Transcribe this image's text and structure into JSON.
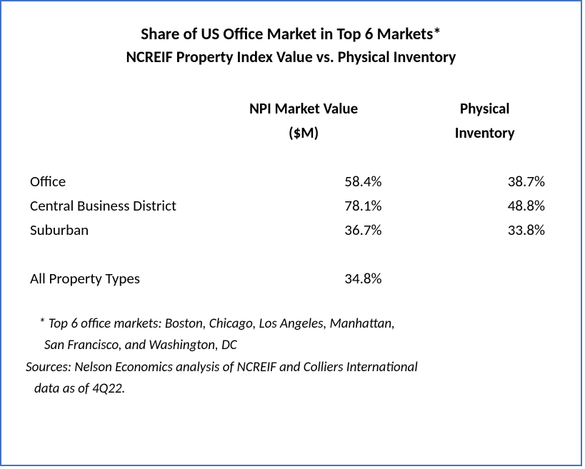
{
  "header": {
    "title": "Share of US Office Market in Top 6 Markets*",
    "subtitle": "NCREIF Property Index Value vs. Physical Inventory"
  },
  "columns": {
    "col1_header_line1": "",
    "col2_header_line1": "NPI Market Value",
    "col2_header_line2": "($M)",
    "col3_header_line1": "Physical",
    "col3_header_line2": "Inventory"
  },
  "rows": [
    {
      "label": "Office",
      "npi": "58.4%",
      "phys": "38.7%"
    },
    {
      "label": "Central Business District",
      "npi": "78.1%",
      "phys": "48.8%"
    },
    {
      "label": "Suburban",
      "npi": "36.7%",
      "phys": "33.8%"
    }
  ],
  "summary": {
    "label": "All  Property Types",
    "npi": "34.8%",
    "phys": ""
  },
  "footnotes": {
    "line1": "* Top 6 office markets: Boston, Chicago, Los Angeles, Manhattan,",
    "line2": "San Francisco, and Washington, DC",
    "line3": "Sources: Nelson Economics analysis of NCREIF and Colliers International",
    "line4": "data as of 4Q22."
  },
  "style": {
    "border_color": "#4472c4",
    "text_color": "#000000",
    "title_fontsize": 23,
    "body_fontsize": 21,
    "footnote_fontsize": 19
  }
}
